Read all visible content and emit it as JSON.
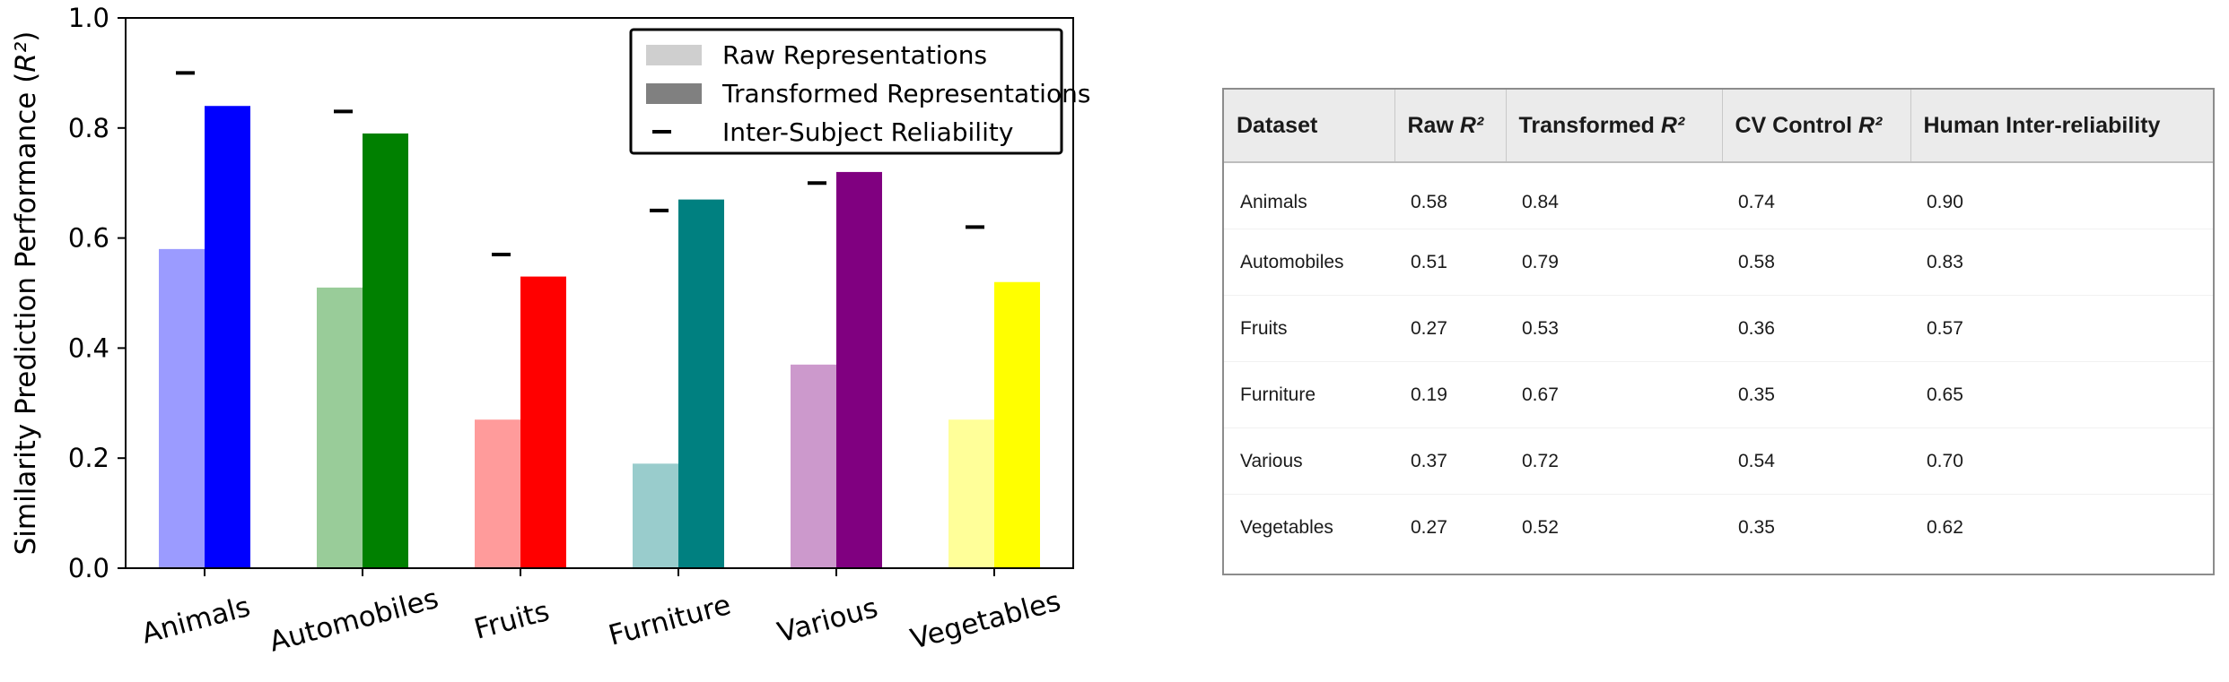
{
  "chart_data": {
    "type": "bar",
    "ylabel": "Similarity Prediction Performance (R²)",
    "ylim": [
      0.0,
      1.0
    ],
    "yticks": [
      "0.0",
      "0.2",
      "0.4",
      "0.6",
      "0.8",
      "1.0"
    ],
    "categories": [
      "Animals",
      "Automobiles",
      "Fruits",
      "Furniture",
      "Various",
      "Vegetables"
    ],
    "series": [
      {
        "name": "Raw Representations",
        "values": [
          0.58,
          0.51,
          0.27,
          0.19,
          0.37,
          0.27
        ],
        "colors": [
          "#9b9bff",
          "#99cc99",
          "#ff9b9b",
          "#99cccc",
          "#cc99cc",
          "#ffff99"
        ]
      },
      {
        "name": "Transformed Representations",
        "values": [
          0.84,
          0.79,
          0.53,
          0.67,
          0.72,
          0.52
        ],
        "colors": [
          "#0000ff",
          "#008000",
          "#ff0000",
          "#008080",
          "#800080",
          "#ffff00"
        ]
      },
      {
        "name": "Inter-Subject Reliability",
        "values": [
          0.9,
          0.83,
          0.57,
          0.65,
          0.7,
          0.62
        ],
        "colors": [
          "#000000",
          "#000000",
          "#000000",
          "#000000",
          "#000000",
          "#000000"
        ]
      }
    ],
    "legend_position": "top-right",
    "grid": false
  },
  "table": {
    "headers": [
      "Dataset",
      "Raw R²",
      "Transformed R²",
      "CV Control R²",
      "Human Inter-reliability"
    ],
    "rows": [
      [
        "Animals",
        "0.58",
        "0.84",
        "0.74",
        "0.90"
      ],
      [
        "Automobiles",
        "0.51",
        "0.79",
        "0.58",
        "0.83"
      ],
      [
        "Fruits",
        "0.27",
        "0.53",
        "0.36",
        "0.57"
      ],
      [
        "Furniture",
        "0.19",
        "0.67",
        "0.35",
        "0.65"
      ],
      [
        "Various",
        "0.37",
        "0.72",
        "0.54",
        "0.70"
      ],
      [
        "Vegetables",
        "0.27",
        "0.52",
        "0.35",
        "0.62"
      ]
    ]
  }
}
